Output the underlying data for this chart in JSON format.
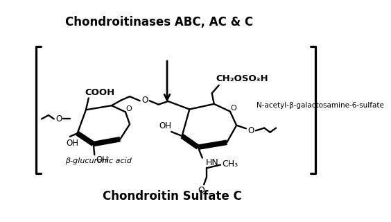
{
  "title_top": "Chondroitinases ABC, AC & C",
  "title_bottom": "Chondroitin Sulfate C",
  "label_glucuronic": "β-glucuronic acid",
  "label_galactosamine": "N-acetyl-β-galactosamine-6-sulfate",
  "bg_color": "#ffffff",
  "line_color": "#000000",
  "title_fontsize": 12,
  "annotation_fontsize": 8
}
